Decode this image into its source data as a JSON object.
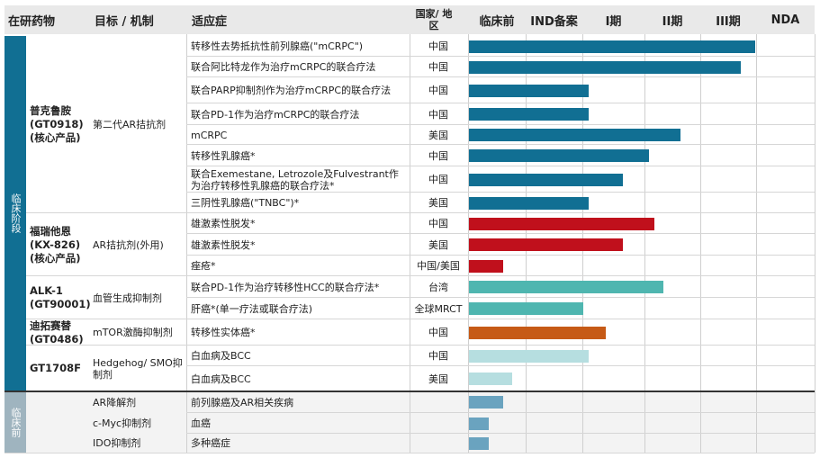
{
  "header": {
    "drug": "在研药物",
    "target": "目标 / 机制",
    "indication": "适应症",
    "country": "国家/ 地区",
    "stages": [
      "临床前",
      "IND备案",
      "I期",
      "II期",
      "III期",
      "NDA"
    ]
  },
  "sections": {
    "clinical": "临床阶段",
    "preclinical": "临床前"
  },
  "drugs": [
    {
      "name": "普克鲁胺 (GT0918) (核心产品)",
      "target": "第二代AR拮抗剂"
    },
    {
      "name": "福瑞他恩 (KX-826) (核心产品)",
      "target": "AR拮抗剂(外用)"
    },
    {
      "name": "ALK-1 (GT90001)",
      "target": "血管生成抑制剂"
    },
    {
      "name": "迪拓赛替 (GT0486)",
      "target": "mTOR激酶抑制剂"
    },
    {
      "name": "GT1708F",
      "target": "Hedgehog/ SMO抑制剂"
    }
  ],
  "preclinical_targets": [
    "AR降解剂",
    "c-Myc抑制剂",
    "IDO抑制剂"
  ],
  "colors": {
    "gt0918": "#116f93",
    "kx826": "#c0101c",
    "alk1": "#4fb6b0",
    "gt0486": "#c65a16",
    "gt1708f": "#b6dee0",
    "pre": "#6aa3bf",
    "sidebar": "#116f93",
    "sidebar_pre": "#9fb4bf"
  },
  "chart_data": {
    "type": "bar",
    "orientation": "horizontal",
    "stage_axis": [
      "临床前",
      "IND备案",
      "I期",
      "II期",
      "III期",
      "NDA"
    ],
    "unit": "stage index (0 = start of 临床前, 6 = end of NDA)",
    "rows": [
      {
        "drug": "普克鲁胺 (GT0918)",
        "indication": "转移性去势抵抗性前列腺癌(\"mCRPC\")",
        "region": "中国",
        "progress": 5.0,
        "color": "gt0918"
      },
      {
        "drug": "普克鲁胺 (GT0918)",
        "indication": "联合阿比特龙作为治疗mCRPC的联合疗法",
        "region": "中国",
        "progress": 4.75,
        "color": "gt0918"
      },
      {
        "drug": "普克鲁胺 (GT0918)",
        "indication": "联合PARP抑制剂作为治疗mCRPC的联合疗法",
        "region": "中国",
        "progress": 2.1,
        "color": "gt0918"
      },
      {
        "drug": "普克鲁胺 (GT0918)",
        "indication": "联合PD-1作为治疗mCRPC的联合疗法",
        "region": "中国",
        "progress": 2.1,
        "color": "gt0918"
      },
      {
        "drug": "普克鲁胺 (GT0918)",
        "indication": "mCRPC",
        "region": "美国",
        "progress": 3.7,
        "color": "gt0918"
      },
      {
        "drug": "普克鲁胺 (GT0918)",
        "indication": "转移性乳腺癌*",
        "region": "中国",
        "progress": 3.15,
        "color": "gt0918"
      },
      {
        "drug": "普克鲁胺 (GT0918)",
        "indication": "联合Exemestane, Letrozole及Fulvestrant作为治疗转移性乳腺癌的联合疗法*",
        "region": "中国",
        "progress": 2.7,
        "color": "gt0918"
      },
      {
        "drug": "普克鲁胺 (GT0918)",
        "indication": "三阴性乳腺癌(\"TNBC\")*",
        "region": "美国",
        "progress": 2.1,
        "color": "gt0918"
      },
      {
        "drug": "福瑞他恩 (KX-826)",
        "indication": "雄激素性脱发*",
        "region": "中国",
        "progress": 3.25,
        "color": "kx826"
      },
      {
        "drug": "福瑞他恩 (KX-826)",
        "indication": "雄激素性脱发*",
        "region": "美国",
        "progress": 2.7,
        "color": "kx826"
      },
      {
        "drug": "福瑞他恩 (KX-826)",
        "indication": "痤疮*",
        "region": "中国/美国",
        "progress": 0.6,
        "color": "kx826"
      },
      {
        "drug": "ALK-1 (GT90001)",
        "indication": "联合PD-1作为治疗转移性HCC的联合疗法*",
        "region": "台湾",
        "progress": 3.4,
        "color": "alk1"
      },
      {
        "drug": "ALK-1 (GT90001)",
        "indication": "肝癌*(单一疗法或联合疗法)",
        "region": "全球MRCT",
        "progress": 2.0,
        "color": "alk1"
      },
      {
        "drug": "迪拓赛替 (GT0486)",
        "indication": "转移性实体癌*",
        "region": "中国",
        "progress": 2.4,
        "color": "gt0486"
      },
      {
        "drug": "GT1708F",
        "indication": "白血病及BCC",
        "region": "中国",
        "progress": 2.1,
        "color": "gt1708f"
      },
      {
        "drug": "GT1708F",
        "indication": "白血病及BCC",
        "region": "美国",
        "progress": 0.75,
        "color": "gt1708f"
      },
      {
        "drug": "AR降解剂",
        "indication": "前列腺癌及AR相关疾病",
        "region": "",
        "progress": 0.6,
        "color": "pre"
      },
      {
        "drug": "c-Myc抑制剂",
        "indication": "血癌",
        "region": "",
        "progress": 0.35,
        "color": "pre"
      },
      {
        "drug": "IDO抑制剂",
        "indication": "多种癌症",
        "region": "",
        "progress": 0.35,
        "color": "pre"
      }
    ]
  }
}
